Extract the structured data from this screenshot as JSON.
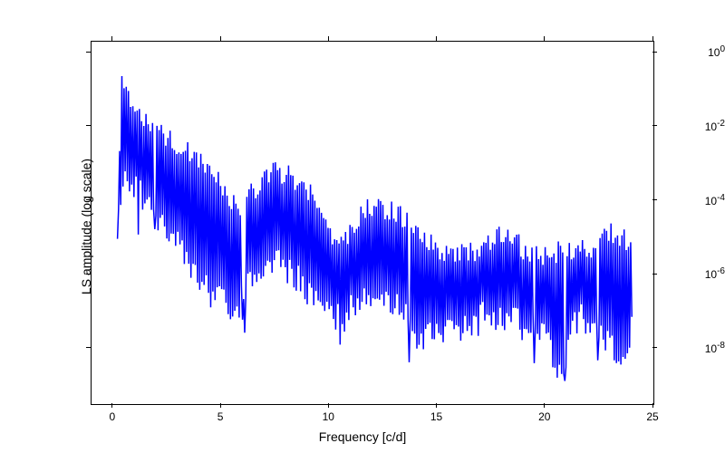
{
  "chart": {
    "type": "line",
    "xlabel": "Frequency [c/d]",
    "ylabel": "LS amplitude (log scale)",
    "label_fontsize": 14,
    "tick_fontsize": 12,
    "xlim": [
      -1.0,
      25
    ],
    "ylim_log": [
      -9.5,
      0.3
    ],
    "xticks": [
      0,
      5,
      10,
      15,
      20,
      25
    ],
    "yticks_exp": [
      -8,
      -6,
      -4,
      -2,
      0
    ],
    "line_color": "#0000ff",
    "line_width": 1.5,
    "background_color": "#ffffff",
    "border_color": "#000000",
    "x_data_range": [
      0.2,
      24
    ],
    "n_points": 470,
    "envelope_top_log": [
      [
        0.2,
        -4.5
      ],
      [
        0.4,
        -0.2
      ],
      [
        0.6,
        -0.8
      ],
      [
        1,
        -1.3
      ],
      [
        2,
        -1.8
      ],
      [
        3,
        -2.2
      ],
      [
        4,
        -2.6
      ],
      [
        5,
        -3.2
      ],
      [
        5.8,
        -4.0
      ],
      [
        6.5,
        -3.4
      ],
      [
        7.5,
        -2.9
      ],
      [
        8,
        -3.0
      ],
      [
        9,
        -3.4
      ],
      [
        9.7,
        -4.2
      ],
      [
        10.5,
        -5.0
      ],
      [
        11,
        -4.4
      ],
      [
        12,
        -3.8
      ],
      [
        13,
        -4.0
      ],
      [
        14,
        -4.4
      ],
      [
        15,
        -5.0
      ],
      [
        16,
        -5.2
      ],
      [
        17,
        -5.0
      ],
      [
        18,
        -4.6
      ],
      [
        19,
        -5.0
      ],
      [
        20,
        -5.2
      ],
      [
        21,
        -5.0
      ],
      [
        22,
        -5.0
      ],
      [
        23,
        -4.6
      ],
      [
        24,
        -4.8
      ]
    ],
    "envelope_bot_log": [
      [
        0.2,
        -5.2
      ],
      [
        0.5,
        -4.0
      ],
      [
        1,
        -4.0
      ],
      [
        2,
        -4.8
      ],
      [
        3,
        -5.5
      ],
      [
        4,
        -6.5
      ],
      [
        5,
        -7.0
      ],
      [
        5.5,
        -7.5
      ],
      [
        6.5,
        -6.5
      ],
      [
        7.5,
        -6.0
      ],
      [
        8.5,
        -6.5
      ],
      [
        9.5,
        -7.3
      ],
      [
        10.5,
        -7.5
      ],
      [
        11.5,
        -7.0
      ],
      [
        12.5,
        -7.0
      ],
      [
        13.5,
        -7.5
      ],
      [
        14,
        -8.0
      ],
      [
        14.2,
        -8.4
      ],
      [
        15,
        -7.8
      ],
      [
        16,
        -8.0
      ],
      [
        17,
        -7.5
      ],
      [
        18,
        -7.5
      ],
      [
        19,
        -7.8
      ],
      [
        20,
        -8.0
      ],
      [
        20.6,
        -9.3
      ],
      [
        21.5,
        -7.5
      ],
      [
        22.5,
        -7.8
      ],
      [
        23.5,
        -8.7
      ],
      [
        24,
        -7.8
      ]
    ]
  }
}
